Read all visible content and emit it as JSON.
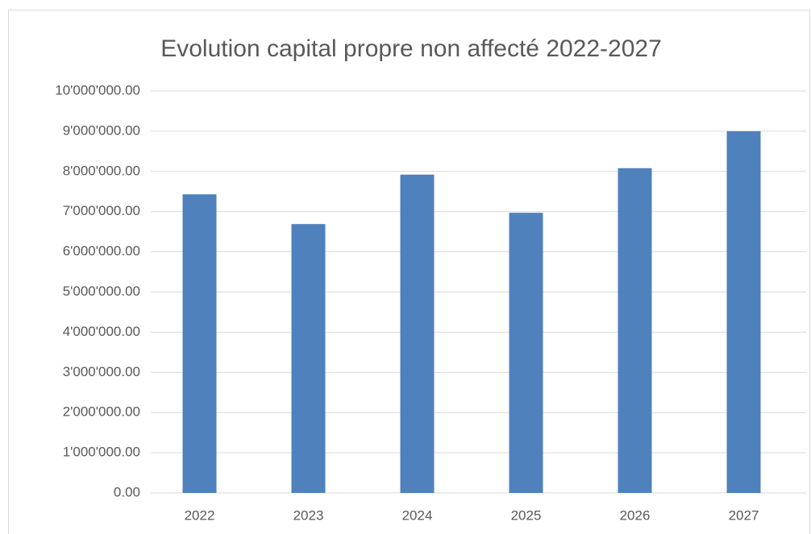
{
  "chart_data": {
    "type": "bar",
    "title": "Evolution capital propre non affecté 2022-2027",
    "categories": [
      "2022",
      "2023",
      "2024",
      "2025",
      "2026",
      "2027"
    ],
    "values": [
      7430000,
      6690000,
      7920000,
      6970000,
      8080000,
      9000000
    ],
    "color": "#4f81bd",
    "ylim": [
      0,
      10000000
    ],
    "yticks": [
      {
        "value": 0,
        "label": "0.00"
      },
      {
        "value": 1000000,
        "label": "1'000'000.00"
      },
      {
        "value": 2000000,
        "label": "2'000'000.00"
      },
      {
        "value": 3000000,
        "label": "3'000'000.00"
      },
      {
        "value": 4000000,
        "label": "4'000'000.00"
      },
      {
        "value": 5000000,
        "label": "5'000'000.00"
      },
      {
        "value": 6000000,
        "label": "6'000'000.00"
      },
      {
        "value": 7000000,
        "label": "7'000'000.00"
      },
      {
        "value": 8000000,
        "label": "8'000'000.00"
      },
      {
        "value": 9000000,
        "label": "9'000'000.00"
      },
      {
        "value": 10000000,
        "label": "10'000'000.00"
      }
    ],
    "grid": true
  }
}
